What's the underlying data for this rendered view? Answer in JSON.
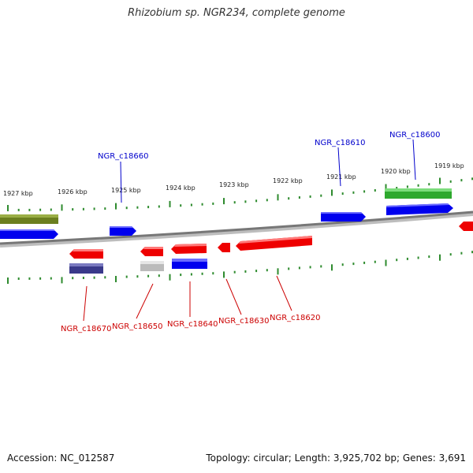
{
  "title": "Rhizobium sp. NGR234, complete genome",
  "footer": {
    "accession": "Accession: NC_012587",
    "summary": "Topology: circular; Length: 3,925,702 bp; Genes: 3,691"
  },
  "colors": {
    "forward_gene": "#0000ee",
    "reverse_gene": "#ee0000",
    "rna_forward": "#33bb33",
    "rna_olive": "#6b7f1f",
    "pseudo_grey": "#bbbbbb",
    "navy_feature": "#3a3a8a",
    "tick": "#2e8b2e",
    "backbone": "#888888",
    "label_forward": "#0000cc",
    "label_reverse": "#cc0000"
  },
  "ticks": [
    "1927 kbp",
    "1926 kbp",
    "1925 kbp",
    "1924 kbp",
    "1923 kbp",
    "1922 kbp",
    "1921 kbp",
    "1920 kbp",
    "1919 kbp"
  ],
  "gene_labels_top": [
    "NGR_c18660",
    "NGR_c18610",
    "NGR_c18600"
  ],
  "gene_labels_bottom": [
    "NGR_c18670",
    "NGR_c18650",
    "NGR_c18640",
    "NGR_c18630",
    "NGR_c18620"
  ]
}
